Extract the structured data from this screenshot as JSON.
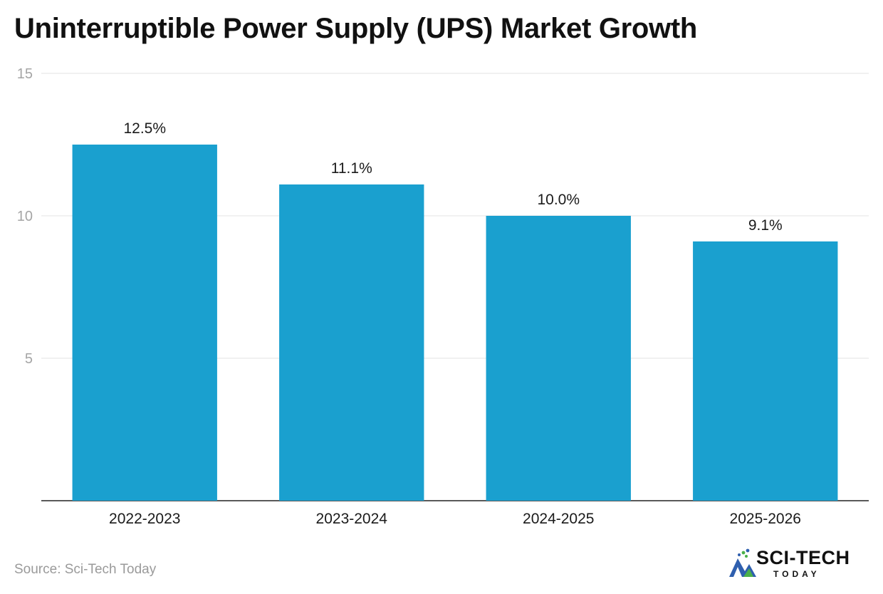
{
  "chart_data": {
    "type": "bar",
    "title": "Uninterruptible Power Supply (UPS) Market Growth",
    "categories": [
      "2022-2023",
      "2023-2024",
      "2024-2025",
      "2025-2026"
    ],
    "values": [
      12.5,
      11.1,
      10.0,
      9.1
    ],
    "data_labels": [
      "12.5%",
      "11.1%",
      "10.0%",
      "9.1%"
    ],
    "ylim": [
      0,
      15
    ],
    "yticks": [
      5,
      10,
      15
    ],
    "xlabel": "",
    "ylabel": "",
    "grid": true,
    "bar_color": "#1aa0cf"
  },
  "source": "Source: Sci-Tech Today",
  "logo": {
    "main": "SCI-TECH",
    "sub": "TODAY",
    "icon": "sci-tech-logo-icon"
  }
}
